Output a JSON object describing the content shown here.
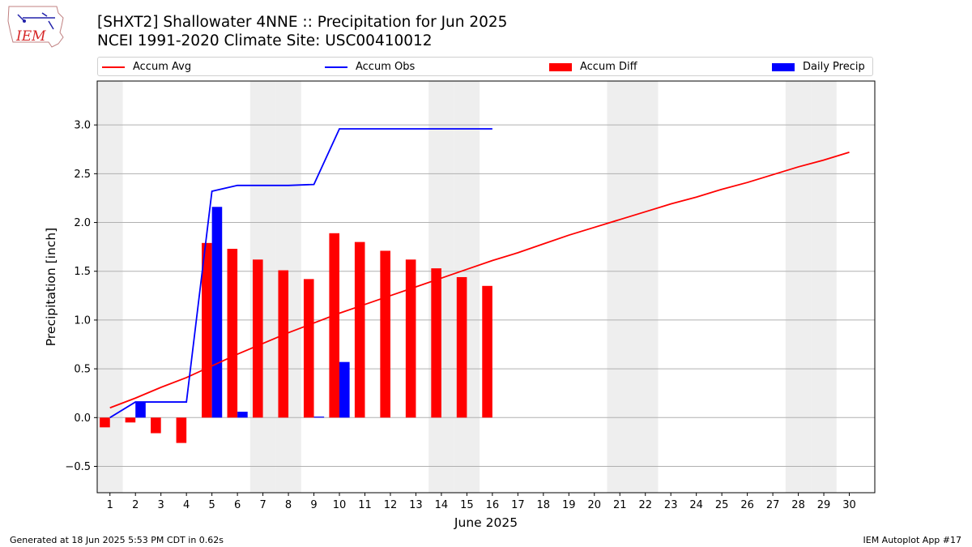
{
  "header": {
    "title_line1": "[SHXT2] Shallowater 4NNE :: Precipitation for Jun 2025",
    "title_line2": "NCEI 1991-2020 Climate Site: USC00410012"
  },
  "logo": {
    "text": "IEM",
    "color": "#d62728"
  },
  "legend": {
    "accum_avg": "Accum Avg",
    "accum_obs": "Accum Obs",
    "accum_diff": "Accum Diff",
    "daily_precip": "Daily Precip"
  },
  "footer": {
    "generated": "Generated at 18 Jun 2025 5:53 PM CDT in 0.62s",
    "app": "IEM Autoplot App #17"
  },
  "chart_data": {
    "type": "bar",
    "xlabel": "June 2025",
    "ylabel": "Precipitation [inch]",
    "xlim": [
      0.5,
      31.0
    ],
    "ylim": [
      -0.77,
      3.45
    ],
    "yticks": [
      -0.5,
      0.0,
      0.5,
      1.0,
      1.5,
      2.0,
      2.5,
      3.0
    ],
    "ytick_labels": [
      "−0.5",
      "0.0",
      "0.5",
      "1.0",
      "1.5",
      "2.0",
      "2.5",
      "3.0"
    ],
    "days": [
      1,
      2,
      3,
      4,
      5,
      6,
      7,
      8,
      9,
      10,
      11,
      12,
      13,
      14,
      15,
      16,
      17,
      18,
      19,
      20,
      21,
      22,
      23,
      24,
      25,
      26,
      27,
      28,
      29,
      30
    ],
    "weekend_days": [
      1,
      7,
      8,
      14,
      15,
      21,
      22,
      28,
      29
    ],
    "grid": "horizontal",
    "colors": {
      "accum_avg": "#ff0000",
      "accum_obs": "#0000ff",
      "accum_diff": "#ff0000",
      "daily_precip": "#0000ff",
      "weekend": "#eeeeee",
      "grid": "#b0b0b0"
    },
    "series": [
      {
        "name": "Accum Avg",
        "type": "line",
        "x": [
          1,
          2,
          3,
          4,
          5,
          6,
          7,
          8,
          9,
          10,
          11,
          12,
          13,
          14,
          15,
          16,
          17,
          18,
          19,
          20,
          21,
          22,
          23,
          24,
          25,
          26,
          27,
          28,
          29,
          30
        ],
        "values": [
          0.1,
          0.2,
          0.31,
          0.41,
          0.53,
          0.65,
          0.76,
          0.87,
          0.97,
          1.07,
          1.16,
          1.25,
          1.34,
          1.43,
          1.52,
          1.61,
          1.69,
          1.78,
          1.87,
          1.95,
          2.03,
          2.11,
          2.19,
          2.26,
          2.34,
          2.41,
          2.49,
          2.57,
          2.64,
          2.72
        ]
      },
      {
        "name": "Accum Obs",
        "type": "line",
        "x": [
          1,
          2,
          3,
          4,
          5,
          6,
          7,
          8,
          9,
          10,
          11,
          12,
          13,
          14,
          15,
          16
        ],
        "values": [
          0.0,
          0.16,
          0.16,
          0.16,
          2.32,
          2.38,
          2.38,
          2.38,
          2.39,
          2.96,
          2.96,
          2.96,
          2.96,
          2.96,
          2.96,
          2.96
        ]
      },
      {
        "name": "Accum Diff",
        "type": "bar",
        "x": [
          1,
          2,
          3,
          4,
          5,
          6,
          7,
          8,
          9,
          10,
          11,
          12,
          13,
          14,
          15,
          16
        ],
        "values": [
          -0.1,
          -0.05,
          -0.16,
          -0.26,
          1.79,
          1.73,
          1.62,
          1.51,
          1.42,
          1.89,
          1.8,
          1.71,
          1.62,
          1.53,
          1.44,
          1.35
        ]
      },
      {
        "name": "Daily Precip",
        "type": "bar",
        "x": [
          1,
          2,
          3,
          4,
          5,
          6,
          7,
          8,
          9,
          10,
          11,
          12,
          13,
          14,
          15,
          16
        ],
        "values": [
          0.0,
          0.16,
          0.0,
          0.0,
          2.16,
          0.06,
          0.0,
          0.0,
          0.01,
          0.57,
          0.0,
          0.0,
          0.0,
          0.0,
          0.0,
          0.0
        ]
      }
    ]
  }
}
